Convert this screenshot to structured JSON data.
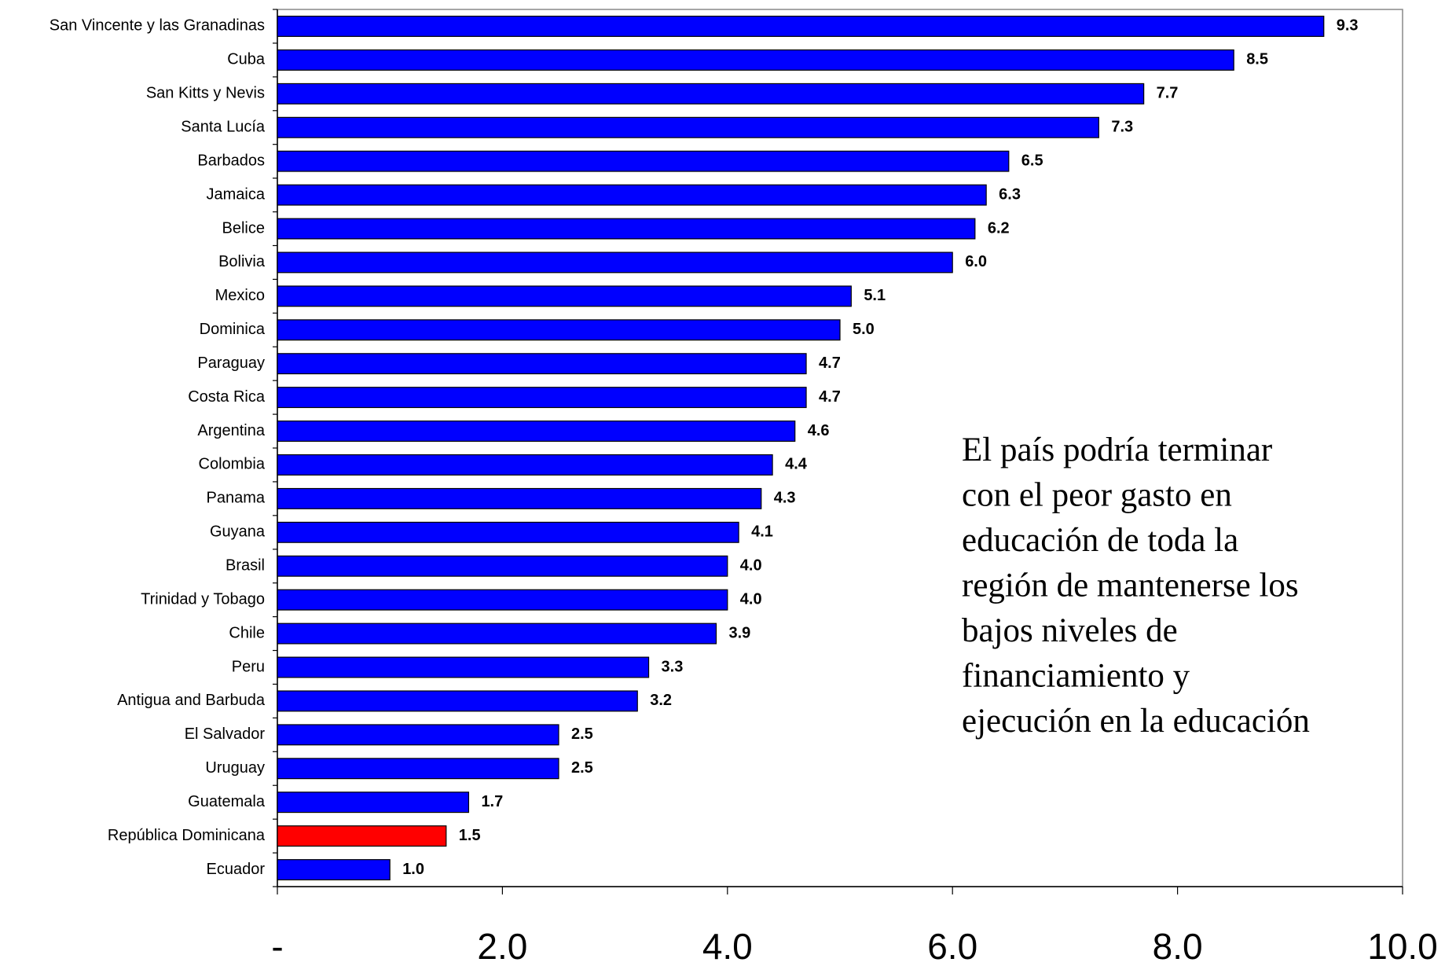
{
  "chart_data": {
    "type": "barh",
    "categories": [
      "San Vincente y las Granadinas",
      "Cuba",
      "San Kitts y Nevis",
      "Santa Lucía",
      "Barbados",
      "Jamaica",
      "Belice",
      "Bolivia",
      "Mexico",
      "Dominica",
      "Paraguay",
      "Costa Rica",
      "Argentina",
      "Colombia",
      "Panama",
      "Guyana",
      "Brasil",
      "Trinidad y Tobago",
      "Chile",
      "Peru",
      "Antigua and Barbuda",
      "El Salvador",
      "Uruguay",
      "Guatemala",
      "República Dominicana",
      "Ecuador"
    ],
    "values": [
      9.3,
      8.5,
      7.7,
      7.3,
      6.5,
      6.3,
      6.2,
      6.0,
      5.1,
      5.0,
      4.7,
      4.7,
      4.6,
      4.4,
      4.3,
      4.1,
      4.0,
      4.0,
      3.9,
      3.3,
      3.2,
      2.5,
      2.5,
      1.7,
      1.5,
      1.0
    ],
    "value_labels": [
      "9.3",
      "8.5",
      "7.7",
      "7.3",
      "6.5",
      "6.3",
      "6.2",
      "6.0",
      "5.1",
      "5.0",
      "4.7",
      "4.7",
      "4.6",
      "4.4",
      "4.3",
      "4.1",
      "4.0",
      "4.0",
      "3.9",
      "3.3",
      "3.2",
      "2.5",
      "2.5",
      "1.7",
      "1.5",
      "1.0"
    ],
    "colors": [
      "#0000ff",
      "#0000ff",
      "#0000ff",
      "#0000ff",
      "#0000ff",
      "#0000ff",
      "#0000ff",
      "#0000ff",
      "#0000ff",
      "#0000ff",
      "#0000ff",
      "#0000ff",
      "#0000ff",
      "#0000ff",
      "#0000ff",
      "#0000ff",
      "#0000ff",
      "#0000ff",
      "#0000ff",
      "#0000ff",
      "#0000ff",
      "#0000ff",
      "#0000ff",
      "#0000ff",
      "#ff0000",
      "#0000ff"
    ],
    "xlim": [
      0,
      10
    ],
    "xticks": [
      {
        "value": 0,
        "label": "-"
      },
      {
        "value": 2,
        "label": "2.0"
      },
      {
        "value": 4,
        "label": "4.0"
      },
      {
        "value": 6,
        "label": "6.0"
      },
      {
        "value": 8,
        "label": "8.0"
      },
      {
        "value": 10,
        "label": "10.0"
      }
    ],
    "annotation": [
      "El país podría terminar",
      "con el peor gasto en",
      "educación de toda la",
      "región de mantenerse los",
      "bajos niveles de",
      "financiamiento y",
      "ejecución en la educación"
    ]
  }
}
